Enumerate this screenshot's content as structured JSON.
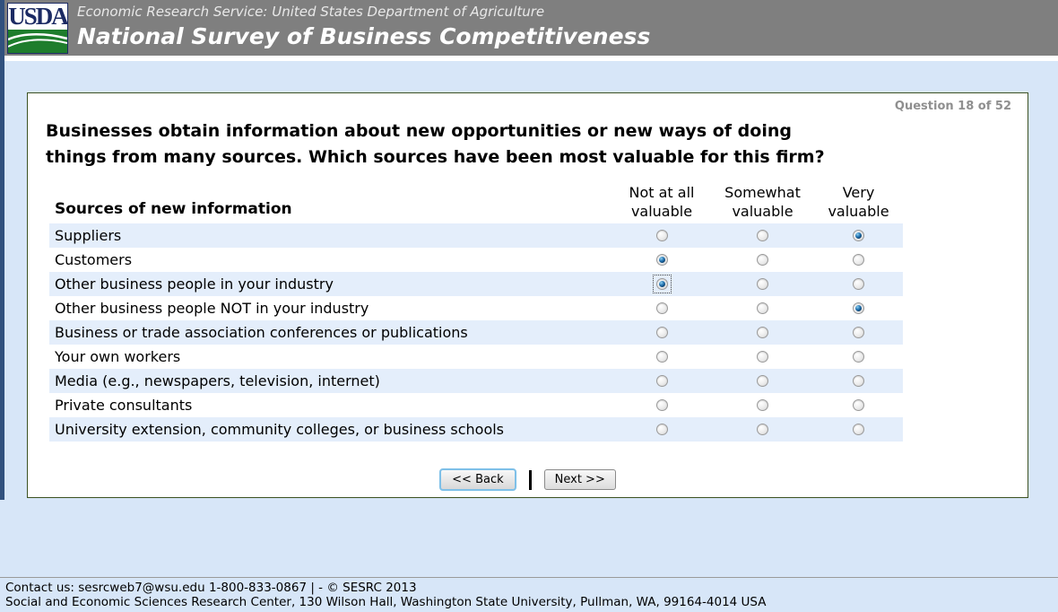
{
  "header": {
    "logo_text": "USDA",
    "agency_line": "Economic Research Service: United States Department of Agriculture",
    "survey_title": "National Survey of Business Competitiveness"
  },
  "question": {
    "progress": "Question 18 of 52",
    "text_line1": "Businesses obtain information about new opportunities or new ways of doing",
    "text_line2": "things from many sources. Which sources have been most valuable for this firm?"
  },
  "table": {
    "row_header": "Sources of new information",
    "columns": [
      {
        "line1": "Not at all",
        "line2": "valuable"
      },
      {
        "line1": "Somewhat",
        "line2": "valuable"
      },
      {
        "line1": "Very",
        "line2": "valuable"
      }
    ],
    "rows": [
      {
        "label": "Suppliers",
        "selected": 2
      },
      {
        "label": "Customers",
        "selected": 0
      },
      {
        "label": "Other business people in your industry",
        "selected": 0,
        "focused_col": 0
      },
      {
        "label": "Other business people NOT in your industry",
        "selected": 2
      },
      {
        "label": "Business or trade association conferences or publications",
        "selected": -1
      },
      {
        "label": "Your own workers",
        "selected": -1
      },
      {
        "label": "Media (e.g., newspapers, television, internet)",
        "selected": -1
      },
      {
        "label": "Private consultants",
        "selected": -1
      },
      {
        "label": "University extension, community colleges, or business schools",
        "selected": -1
      }
    ]
  },
  "buttons": {
    "back": "<< Back",
    "next": "Next >>"
  },
  "footer": {
    "line1": "Contact us: sesrcweb7@wsu.edu 1-800-833-0867 | - © SESRC 2013",
    "line2": "Social and Economic Sciences Research Center, 130 Wilson Hall, Washington State University, Pullman, WA, 99164-4014 USA"
  },
  "colors": {
    "header_gray": "#7f7f7f",
    "accent_strip_navy": "#31517e",
    "page_background": "#d7e6f8",
    "row_stripe": "#e4eefb",
    "panel_border_green": "#3c5222",
    "logo_navy": "#1b2a63",
    "logo_green": "#1e7d2c",
    "selected_dot_blue": "#1f6fae",
    "focused_button_border": "#7fc0e8",
    "progress_gray": "#8f8f8f"
  }
}
